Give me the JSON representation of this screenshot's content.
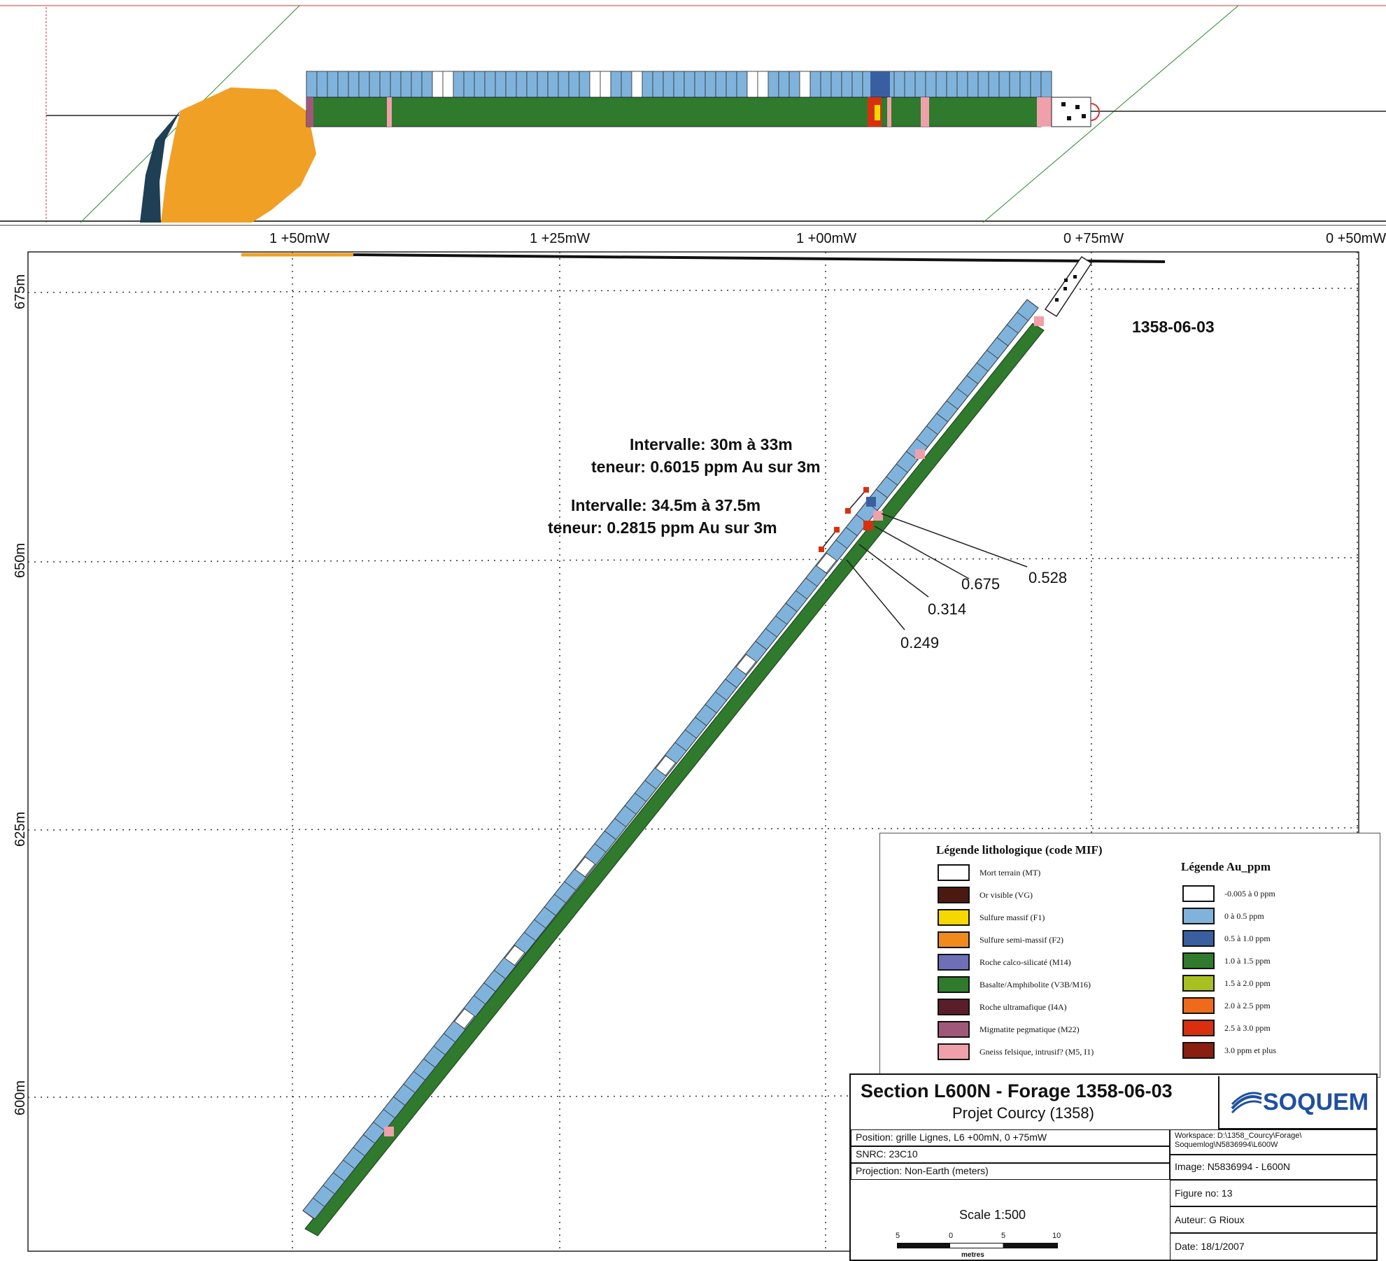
{
  "hole_id": "1358-06-03",
  "x_axis_labels": [
    "1 +50mW",
    "1 +25mW",
    "1 +00mW",
    "0 +75mW",
    "0 +50mW"
  ],
  "y_axis_labels": [
    "675m",
    "650m",
    "625m",
    "600m"
  ],
  "intervals": [
    {
      "line1": "Intervalle: 30m à 33m",
      "line2": "teneur: 0.6015 ppm Au sur 3m"
    },
    {
      "line1": "Intervalle: 34.5m à 37.5m",
      "line2": "teneur: 0.2815 ppm Au sur 3m"
    }
  ],
  "assay_labels": [
    "0.528",
    "0.675",
    "0.314",
    "0.249"
  ],
  "legend_litho": {
    "title": "Légende lithologique (code MIF)",
    "items": [
      {
        "label": "Mort terrain (MT)",
        "color": "#ffffff"
      },
      {
        "label": "Or visible (VG)",
        "color": "#4a1a10"
      },
      {
        "label": "Sulfure massif (F1)",
        "color": "#f5d800"
      },
      {
        "label": "Sulfure semi-massif (F2)",
        "color": "#f08a1c"
      },
      {
        "label": "Roche calco-silicaté (M14)",
        "color": "#6f6fb8"
      },
      {
        "label": "Basalte/Amphibolite (V3B/M16)",
        "color": "#2f7a2c"
      },
      {
        "label": "Roche ultramafique (I4A)",
        "color": "#5a1e2a"
      },
      {
        "label": "Migmatite pegmatique (M22)",
        "color": "#a0587a"
      },
      {
        "label": "Gneiss felsique, intrusif? (M5, I1)",
        "color": "#f0a0aa"
      }
    ]
  },
  "legend_au": {
    "title": "Légende Au_ppm",
    "items": [
      {
        "label": "-0.005 à 0 ppm",
        "color": "#ffffff"
      },
      {
        "label": "0 à 0.5 ppm",
        "color": "#7fb3dc"
      },
      {
        "label": "0.5 à 1.0 ppm",
        "color": "#3a5fa0"
      },
      {
        "label": "1.0 à 1.5 ppm",
        "color": "#2f7a2c"
      },
      {
        "label": "1.5 à 2.0 ppm",
        "color": "#a8c020"
      },
      {
        "label": "2.0 à 2.5 ppm",
        "color": "#ef6a1a"
      },
      {
        "label": "2.5 à 3.0 ppm",
        "color": "#d8300e"
      },
      {
        "label": "3.0 ppm et plus",
        "color": "#8a1e10"
      }
    ]
  },
  "title_block": {
    "title": "Section L600N - Forage 1358-06-03",
    "subtitle": "Projet Courcy (1358)",
    "logo": "SOQUEM",
    "position": "Position: grille Lignes, L6 +00mN, 0 +75mW",
    "snrc": "SNRC: 23C10",
    "projection": "Projection: Non-Earth (meters)",
    "workspace": "Workspace: D:\\1358_Courcy\\Forage\\ Soquemlog\\N5836994\\L600W",
    "image": "Image: N5836994 - L600N",
    "figure": "Figure no: 13",
    "author": "Auteur: G Rioux",
    "date": "Date: 18/1/2007",
    "scale": "Scale 1:500",
    "scale_ticks": [
      "5",
      "0",
      "5",
      "10"
    ],
    "scale_unit": "metres"
  },
  "colors": {
    "assay_blue": "#7fb3dc",
    "assay_dark": "#3a5fa0",
    "litho_green": "#2f7a2c",
    "gneiss_pink": "#f0a0aa",
    "overburden_orange": "#f0a024",
    "dark_unit": "#1f3f55"
  }
}
